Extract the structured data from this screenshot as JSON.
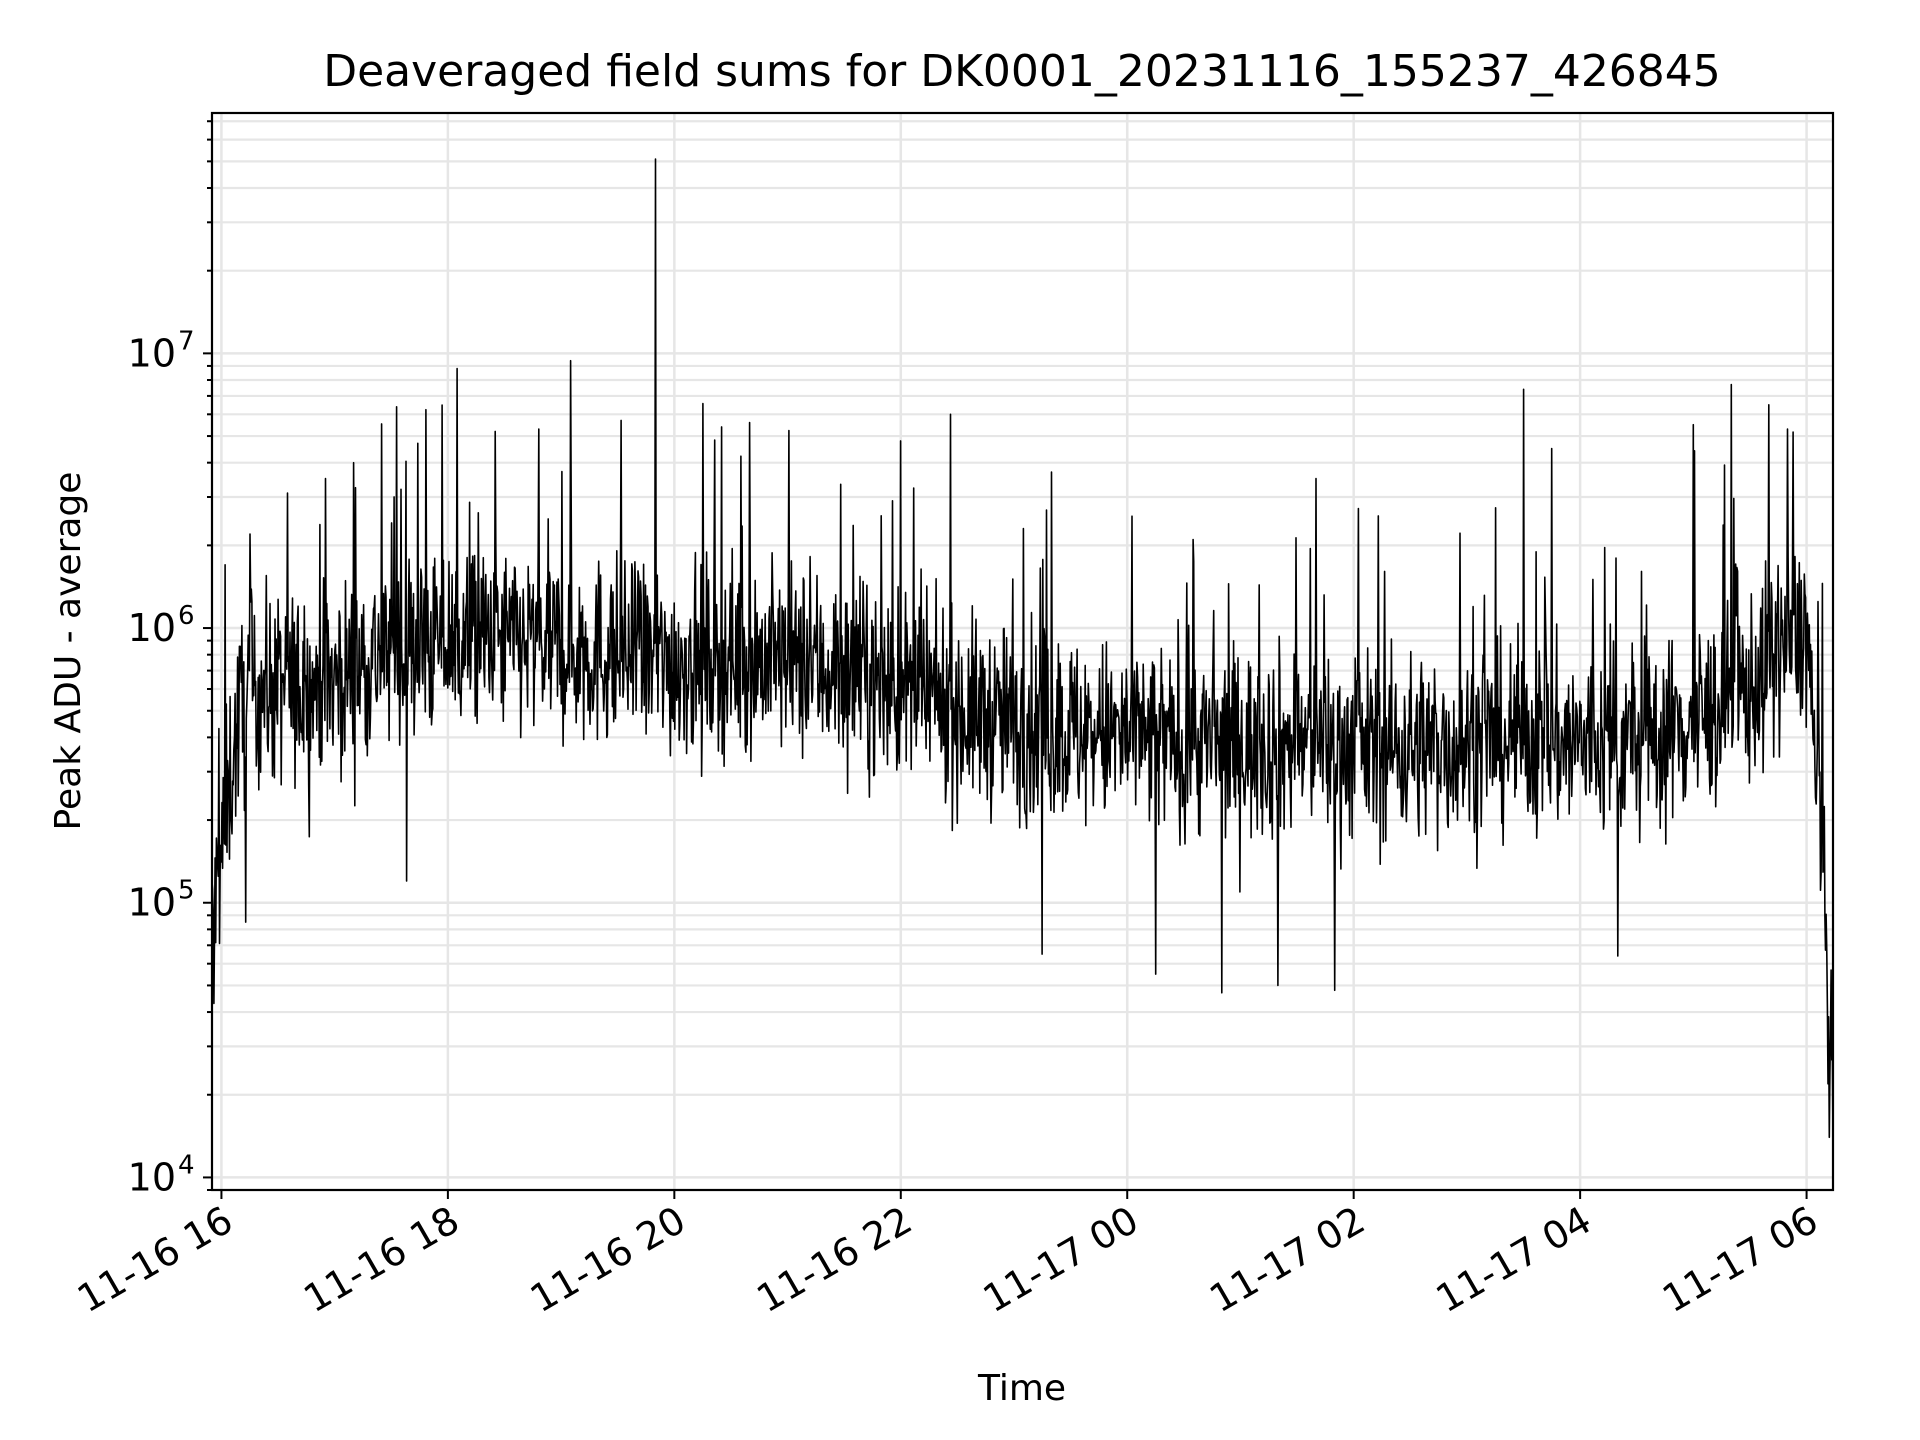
{
  "chart_data": {
    "type": "line",
    "title": "Deaveraged field sums for DK0001_20231116_155237_426845",
    "xlabel": "Time",
    "ylabel": "Peak ADU - average",
    "yscale": "log",
    "ylim": [
      9000,
      75000000
    ],
    "xlim": [
      "2023-11-16T15:55",
      "2023-11-17T06:14"
    ],
    "grid": true,
    "line_color": "#000000",
    "x_ticks": [
      "2023-11-16T16:00",
      "2023-11-16T18:00",
      "2023-11-16T20:00",
      "2023-11-16T22:00",
      "2023-11-17T00:00",
      "2023-11-17T02:00",
      "2023-11-17T04:00",
      "2023-11-17T06:00"
    ],
    "x_tick_labels": [
      "11-16 16",
      "11-16 18",
      "11-16 20",
      "11-16 22",
      "11-17 00",
      "11-17 02",
      "11-17 04",
      "11-17 06"
    ],
    "y_ticks": [
      10000,
      100000,
      1000000,
      10000000
    ],
    "y_tick_labels": [
      {
        "base": "10",
        "exp": "4"
      },
      {
        "base": "10",
        "exp": "5"
      },
      {
        "base": "10",
        "exp": "6"
      },
      {
        "base": "10",
        "exp": "7"
      }
    ],
    "series": [
      {
        "x": [
          "2023-11-16T15:55",
          "2023-11-16T16:00",
          "2023-11-16T16:05",
          "2023-11-16T16:10",
          "2023-11-16T16:20",
          "2023-11-16T16:30",
          "2023-11-16T16:45",
          "2023-11-16T17:00",
          "2023-11-16T17:15",
          "2023-11-16T17:30",
          "2023-11-16T17:45",
          "2023-11-16T18:00",
          "2023-11-16T18:30",
          "2023-11-16T19:00",
          "2023-11-16T19:30",
          "2023-11-16T20:00",
          "2023-11-16T20:30",
          "2023-11-16T21:00",
          "2023-11-16T21:30",
          "2023-11-16T22:00",
          "2023-11-16T22:30",
          "2023-11-16T23:00",
          "2023-11-16T23:30",
          "2023-11-17T00:00",
          "2023-11-17T00:30",
          "2023-11-17T01:00",
          "2023-11-17T01:30",
          "2023-11-17T02:00",
          "2023-11-17T02:30",
          "2023-11-17T03:00",
          "2023-11-17T03:30",
          "2023-11-17T04:00",
          "2023-11-17T04:30",
          "2023-11-17T05:00",
          "2023-11-17T05:30",
          "2023-11-17T05:50",
          "2023-11-17T06:00",
          "2023-11-17T06:05",
          "2023-11-17T06:10",
          "2023-11-17T06:14"
        ],
        "y": [
          80000,
          150000,
          300000,
          500000,
          600000,
          600000,
          600000,
          650000,
          750000,
          850000,
          850000,
          900000,
          900000,
          850000,
          800000,
          750000,
          800000,
          750000,
          700000,
          600000,
          500000,
          450000,
          420000,
          400000,
          380000,
          380000,
          380000,
          370000,
          370000,
          380000,
          400000,
          380000,
          380000,
          450000,
          600000,
          900000,
          1000000,
          300000,
          90000,
          20000
        ]
      }
    ],
    "spikes": {
      "x": [
        "2023-11-16T16:02",
        "2023-11-16T16:15",
        "2023-11-16T16:35",
        "2023-11-16T16:55",
        "2023-11-16T17:10",
        "2023-11-16T17:35",
        "2023-11-16T18:05",
        "2023-11-16T18:25",
        "2023-11-16T19:05",
        "2023-11-16T19:50",
        "2023-11-16T20:25",
        "2023-11-16T20:40",
        "2023-11-16T22:00",
        "2023-11-16T23:20",
        "2023-11-17T00:35",
        "2023-11-17T01:40",
        "2023-11-17T03:30",
        "2023-11-17T03:45",
        "2023-11-17T05:00",
        "2023-11-17T05:20",
        "2023-11-17T05:40",
        "2023-11-17T05:50"
      ],
      "y": [
        1700000,
        2200000,
        3100000,
        3500000,
        4000000,
        3200000,
        8800000,
        5200000,
        9400000,
        51000000,
        5400000,
        5600000,
        4800000,
        3700000,
        2100000,
        3500000,
        7400000,
        4500000,
        5500000,
        7700000,
        6500000,
        5300000
      ]
    },
    "dips": {
      "x": [
        "2023-11-16T15:56",
        "2023-11-16T16:13",
        "2023-11-16T17:38",
        "2023-11-16T23:15",
        "2023-11-17T00:15",
        "2023-11-17T00:50",
        "2023-11-17T01:20",
        "2023-11-17T01:50",
        "2023-11-17T04:20",
        "2023-11-17T06:12"
      ],
      "y": [
        43000,
        85000,
        120000,
        65000,
        55000,
        47000,
        50000,
        48000,
        64000,
        14000
      ]
    }
  }
}
